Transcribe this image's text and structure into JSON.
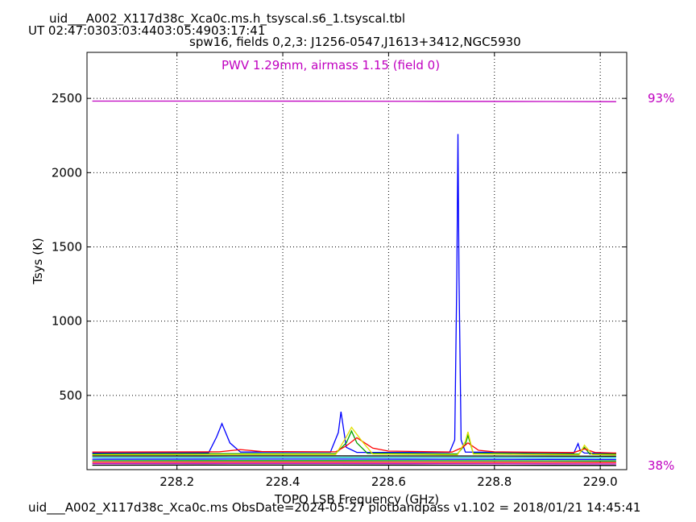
{
  "header": {
    "title_line1": "uid___A002_X117d38c_Xca0c.ms.h_tsyscal.s6_1.tsyscal.tbl",
    "title_line2": "UT 02:47:0303:03:4403:05:4903:17:41",
    "title_line3": "spw16,  fields 0,2,3: J1256-0547,J1613+3412,NGC5930"
  },
  "footer": {
    "text": "uid___A002_X117d38c_Xca0c.ms  ObsDate=2024-05-27   plotbandpass v1.102 = 2018/01/21 14:45:41"
  },
  "colors": {
    "magenta": "#c000c0",
    "blue": "#0000ff",
    "green": "#00a000",
    "red": "#ff0000",
    "yellow": "#e0e000",
    "black": "#000000",
    "cyan": "#00c0c0"
  },
  "chart_data": {
    "type": "line",
    "title": "",
    "xlabel": "TOPO LSB Frequency (GHz)",
    "ylabel": "Tsys (K)",
    "xlim": [
      228.03,
      229.05
    ],
    "ylim": [
      0,
      2810
    ],
    "x_ticks": [
      228.2,
      228.4,
      228.6,
      228.8,
      229.0
    ],
    "x_tick_labels": [
      "228.2",
      "228.4",
      "228.6",
      "228.8",
      "229.0"
    ],
    "y_ticks": [
      500,
      1000,
      1500,
      2000,
      2500
    ],
    "y_tick_labels": [
      "500",
      "1000",
      "1500",
      "2000",
      "2500"
    ],
    "grid": true,
    "annotation": "PWV 1.29mm, airmass 1.15 (field 0)",
    "right_labels": {
      "top": "93%",
      "bottom": "38%"
    },
    "series": [
      {
        "color": "#c000c0",
        "x": [
          228.04,
          228.3,
          228.5,
          228.7,
          228.9,
          229.03
        ],
        "y": [
          2482,
          2482,
          2481,
          2480,
          2479,
          2478
        ]
      },
      {
        "color": "#0000ff",
        "x": [
          228.04,
          228.26,
          228.275,
          228.285,
          228.3,
          228.32,
          228.49,
          228.505,
          228.51,
          228.52,
          228.54,
          228.715,
          228.725,
          228.729,
          228.731,
          228.733,
          228.737,
          228.745,
          228.95,
          228.958,
          228.962,
          228.97,
          229.03
        ],
        "y": [
          112,
          115,
          220,
          310,
          180,
          118,
          118,
          250,
          390,
          150,
          116,
          116,
          200,
          1300,
          2260,
          1300,
          200,
          118,
          112,
          175,
          130,
          112,
          110
        ]
      },
      {
        "color": "#00a000",
        "x": [
          228.04,
          228.3,
          228.5,
          228.52,
          228.53,
          228.54,
          228.56,
          228.73,
          228.745,
          228.75,
          228.76,
          228.96,
          228.97,
          228.98,
          229.03
        ],
        "y": [
          105,
          108,
          108,
          180,
          260,
          180,
          110,
          106,
          170,
          230,
          110,
          105,
          150,
          106,
          104
        ]
      },
      {
        "color": "#ff0000",
        "x": [
          228.04,
          228.28,
          228.32,
          228.36,
          228.5,
          228.52,
          228.54,
          228.57,
          228.6,
          228.72,
          228.74,
          228.75,
          228.77,
          228.8,
          228.95,
          228.97,
          228.99,
          229.03
        ],
        "y": [
          118,
          120,
          135,
          122,
          120,
          160,
          215,
          145,
          125,
          118,
          150,
          180,
          130,
          120,
          115,
          140,
          116,
          112
        ]
      },
      {
        "color": "#e0e000",
        "x": [
          228.04,
          228.3,
          228.5,
          228.52,
          228.53,
          228.55,
          228.57,
          228.73,
          228.745,
          228.75,
          228.76,
          228.96,
          228.97,
          228.985,
          229.03
        ],
        "y": [
          100,
          102,
          102,
          220,
          285,
          190,
          105,
          100,
          190,
          255,
          105,
          100,
          165,
          102,
          98
        ]
      },
      {
        "color": "#000000",
        "x": [
          228.04,
          228.3,
          228.5,
          228.7,
          228.9,
          229.03
        ],
        "y": [
          92,
          93,
          93,
          92,
          91,
          90
        ]
      },
      {
        "color": "#00c0c0",
        "x": [
          228.04,
          228.3,
          228.5,
          228.7,
          228.9,
          229.03
        ],
        "y": [
          82,
          83,
          83,
          82,
          81,
          80
        ]
      },
      {
        "color": "#0000ff",
        "x": [
          228.04,
          228.3,
          228.5,
          228.7,
          228.9,
          229.03
        ],
        "y": [
          70,
          71,
          71,
          70,
          69,
          68
        ]
      },
      {
        "color": "#00a000",
        "x": [
          228.04,
          228.3,
          228.5,
          228.7,
          228.9,
          229.03
        ],
        "y": [
          60,
          61,
          61,
          60,
          59,
          58
        ]
      },
      {
        "color": "#ff0000",
        "x": [
          228.04,
          228.3,
          228.5,
          228.7,
          228.9,
          229.03
        ],
        "y": [
          50,
          51,
          51,
          50,
          49,
          48
        ]
      },
      {
        "color": "#c000c0",
        "x": [
          228.04,
          228.3,
          228.5,
          228.7,
          228.9,
          229.03
        ],
        "y": [
          40,
          41,
          41,
          40,
          39,
          38
        ]
      },
      {
        "color": "#000000",
        "x": [
          228.04,
          228.3,
          228.5,
          228.7,
          228.9,
          229.03
        ],
        "y": [
          30,
          31,
          31,
          30,
          29,
          28
        ]
      }
    ]
  }
}
